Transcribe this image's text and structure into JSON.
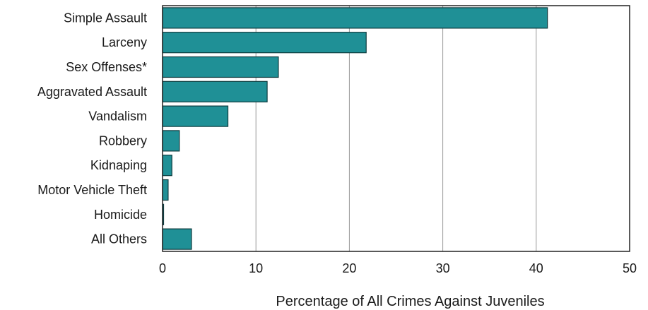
{
  "chart_data": {
    "type": "bar",
    "orientation": "horizontal",
    "categories": [
      "Simple Assault",
      "Larceny",
      "Sex Offenses*",
      "Aggravated Assault",
      "Vandalism",
      "Robbery",
      "Kidnaping",
      "Motor Vehicle Theft",
      "Homicide",
      "All Others"
    ],
    "values": [
      41.2,
      21.8,
      12.4,
      11.2,
      7.0,
      1.8,
      1.0,
      0.6,
      0.1,
      3.1
    ],
    "xlabel": "Percentage of All Crimes Against Juveniles",
    "ylabel": "",
    "xlim": [
      0,
      50
    ],
    "xticks": [
      "0",
      "10",
      "20",
      "30",
      "40",
      "50"
    ],
    "grid": "vertical",
    "bar_color": "#1f9096",
    "bar_edge_color": "#0d3b3e"
  }
}
